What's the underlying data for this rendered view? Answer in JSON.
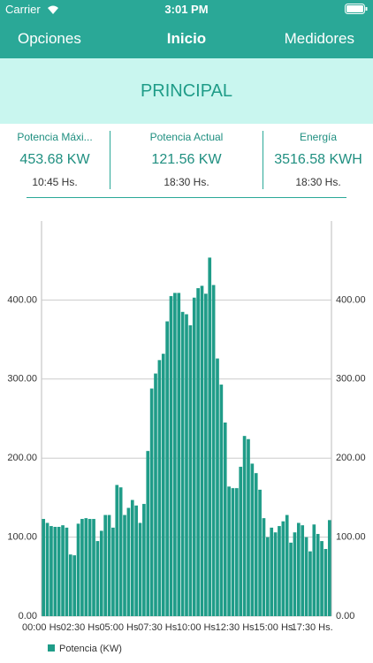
{
  "status_bar": {
    "carrier": "Carrier",
    "time": "3:01 PM"
  },
  "nav": {
    "left": "Opciones",
    "title": "Inicio",
    "right": "Medidores"
  },
  "banner": "PRINCIPAL",
  "stats": [
    {
      "label": "Potencia Máxi...",
      "value": "453.68 KW",
      "time": "10:45 Hs."
    },
    {
      "label": "Potencia Actual",
      "value": "121.56 KW",
      "time": "18:30 Hs."
    },
    {
      "label": "Energía",
      "value": "3516.58 KWH",
      "time": "18:30 Hs."
    }
  ],
  "chart_data": {
    "type": "bar",
    "categories": [
      "00:00 Hs",
      null,
      null,
      null,
      null,
      null,
      null,
      null,
      null,
      null,
      "02:30 Hs",
      null,
      null,
      null,
      null,
      null,
      null,
      null,
      null,
      null,
      "05:00 Hs",
      null,
      null,
      null,
      null,
      null,
      null,
      null,
      null,
      null,
      "07:30 Hs",
      null,
      null,
      null,
      null,
      null,
      null,
      null,
      null,
      null,
      "10:00 Hs",
      null,
      null,
      null,
      null,
      null,
      null,
      null,
      null,
      null,
      "12:30 Hs",
      null,
      null,
      null,
      null,
      null,
      null,
      null,
      null,
      null,
      "15:00 Hs",
      null,
      null,
      null,
      null,
      null,
      null,
      null,
      null,
      null,
      "17:30 Hs.",
      null,
      null,
      null,
      null
    ],
    "series": [
      {
        "name": "Potencia (KW)",
        "color": "#1f9c88",
        "values": [
          123,
          118,
          114,
          113,
          113,
          115,
          112,
          78,
          77,
          117,
          123,
          124,
          123,
          123,
          95,
          108,
          128,
          128,
          112,
          166,
          163,
          128,
          137,
          147,
          140,
          118,
          142,
          209,
          288,
          307,
          324,
          332,
          373,
          405,
          409,
          409,
          385,
          382,
          368,
          403,
          415,
          418,
          408,
          453.68,
          419,
          326,
          293,
          245,
          164,
          162,
          162,
          189,
          228,
          224,
          193,
          181,
          160,
          124,
          100,
          112,
          106,
          114,
          120,
          128,
          93,
          106,
          118,
          115,
          100,
          82,
          116,
          104,
          95,
          85,
          121.56
        ]
      }
    ],
    "ylim": [
      0,
      500
    ],
    "yticks": [
      {
        "value": 0,
        "label": "0.00"
      },
      {
        "value": 100,
        "label": "100.00"
      },
      {
        "value": 200,
        "label": "200.00"
      },
      {
        "value": 300,
        "label": "300.00"
      },
      {
        "value": 400,
        "label": "400.00"
      }
    ],
    "grid": true,
    "legend": "bottom-left"
  }
}
